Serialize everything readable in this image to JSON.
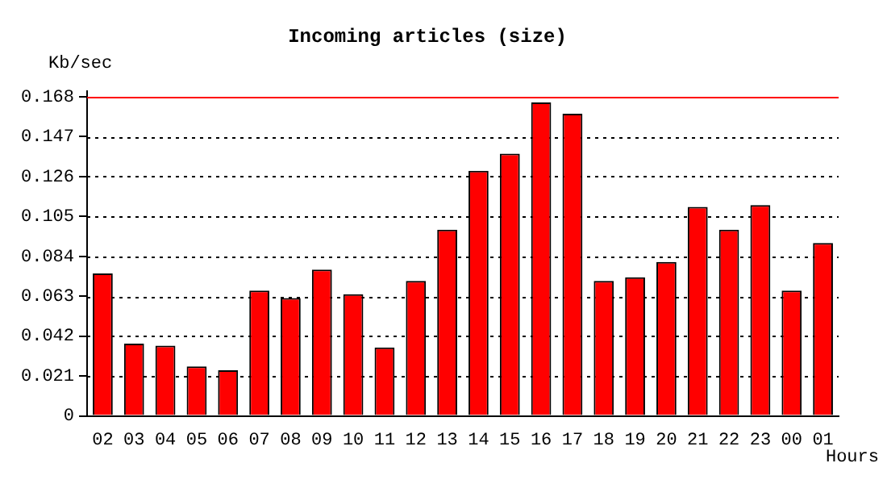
{
  "chart_data": {
    "type": "bar",
    "title": "Incoming articles (size)",
    "ylabel": "Kb/sec",
    "xlabel": "Hours",
    "categories": [
      "02",
      "03",
      "04",
      "05",
      "06",
      "07",
      "08",
      "09",
      "10",
      "11",
      "12",
      "13",
      "14",
      "15",
      "16",
      "17",
      "18",
      "19",
      "20",
      "21",
      "22",
      "23",
      "00",
      "01"
    ],
    "values": [
      0.075,
      0.038,
      0.037,
      0.026,
      0.024,
      0.066,
      0.062,
      0.077,
      0.064,
      0.036,
      0.071,
      0.098,
      0.129,
      0.138,
      0.165,
      0.159,
      0.071,
      0.073,
      0.081,
      0.11,
      0.098,
      0.111,
      0.066,
      0.091
    ],
    "color": "#ff0000",
    "ylim": [
      0,
      0.171
    ],
    "yticks": [
      0,
      0.021,
      0.042,
      0.063,
      0.084,
      0.105,
      0.126,
      0.147,
      0.168
    ],
    "grid": "y",
    "ref_lines": [
      {
        "axis": "y",
        "value": 0.168,
        "color": "#ff0000",
        "line_style": "solid"
      }
    ]
  }
}
